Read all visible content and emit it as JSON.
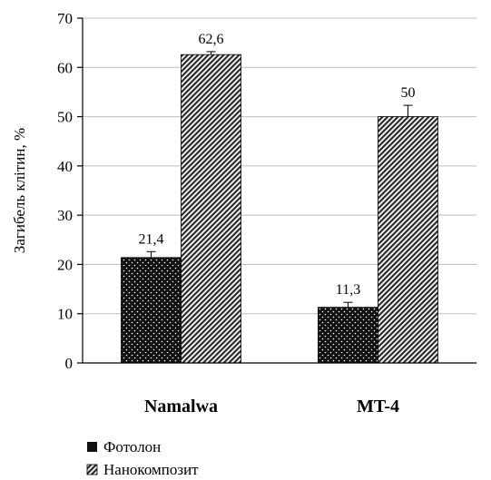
{
  "chart_data": {
    "type": "bar",
    "categories": [
      "Namalwa",
      "MT-4"
    ],
    "series": [
      {
        "name": "Фотолон",
        "values": [
          21.4,
          11.3
        ],
        "errors": [
          1.2,
          1.0
        ],
        "labels": [
          "21,4",
          "11,3"
        ],
        "pattern": "dots-on-black"
      },
      {
        "name": "Нанокомпозит",
        "values": [
          62.6,
          50
        ],
        "errors": [
          0.6,
          2.3
        ],
        "labels": [
          "62,6",
          "50"
        ],
        "pattern": "diagonal-hatch"
      }
    ],
    "ylabel": "Загибель клітин, %",
    "xlabel": "",
    "ylim": [
      0,
      70
    ],
    "yticks": [
      0,
      10,
      20,
      30,
      40,
      50,
      60,
      70
    ],
    "grid": true,
    "legend": "bottom-left"
  }
}
